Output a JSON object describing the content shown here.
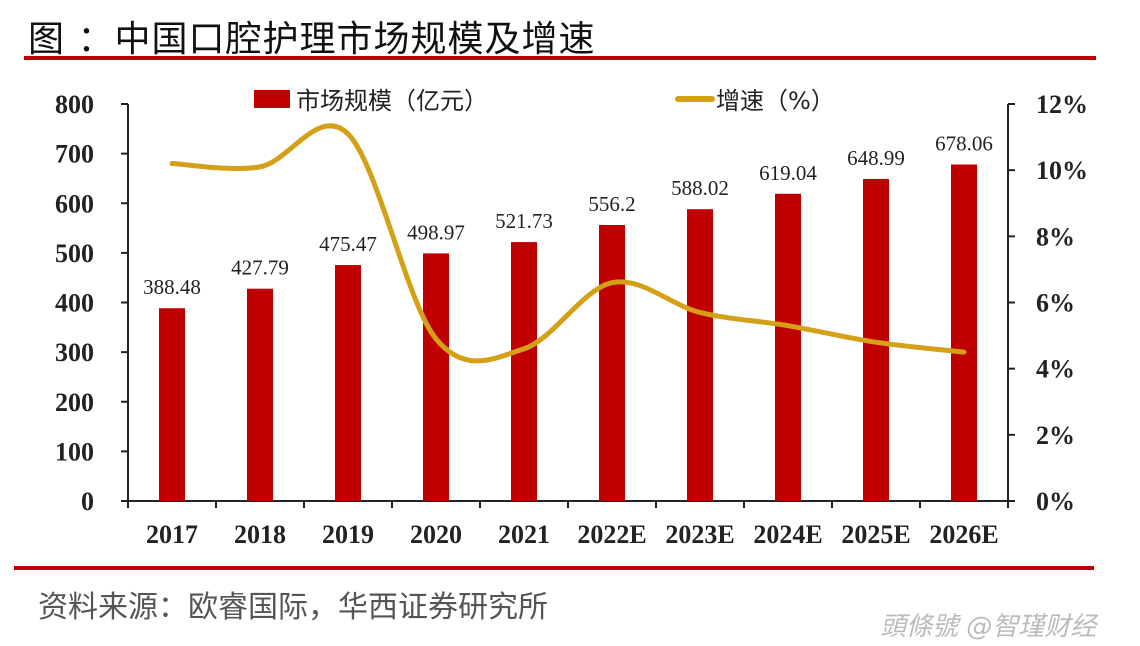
{
  "header": {
    "title": "图 ：中国口腔护理市场规模及增速"
  },
  "footer": {
    "source": "资料来源：欧睿国际，华西证券研究所",
    "watermark": "頭條號 @智瑾财经"
  },
  "colors": {
    "bar": "#c00000",
    "line": "#d4a017",
    "axis": "#222222",
    "rule": "#c00000"
  },
  "chart_data": {
    "type": "bar",
    "title": "中国口腔护理市场规模及增速",
    "categories": [
      "2017",
      "2018",
      "2019",
      "2020",
      "2021",
      "2022E",
      "2023E",
      "2024E",
      "2025E",
      "2026E"
    ],
    "series": [
      {
        "name": "市场规模（亿元）",
        "type": "bar",
        "axis": "left",
        "values": [
          388.48,
          427.79,
          475.47,
          498.97,
          521.73,
          556.2,
          588.02,
          619.04,
          648.99,
          678.06
        ],
        "labels": [
          "388.48",
          "427.79",
          "475.47",
          "498.97",
          "521.73",
          "556.2",
          "588.02",
          "619.04",
          "648.99",
          "678.06"
        ]
      },
      {
        "name": "增速（%）",
        "type": "line",
        "axis": "right",
        "smooth": true,
        "values": [
          10.2,
          10.1,
          11.1,
          4.9,
          4.6,
          6.6,
          5.7,
          5.3,
          4.8,
          4.5
        ]
      }
    ],
    "left_axis": {
      "ylim": [
        0,
        800
      ],
      "ticks": [
        "0",
        "100",
        "200",
        "300",
        "400",
        "500",
        "600",
        "700",
        "800"
      ]
    },
    "right_axis": {
      "ylim": [
        0,
        12
      ],
      "ticks": [
        "0%",
        "2%",
        "4%",
        "6%",
        "8%",
        "10%",
        "12%"
      ]
    },
    "legend": {
      "position": "top",
      "items": [
        "市场规模（亿元）",
        "增速（%）"
      ]
    },
    "grid": false
  }
}
